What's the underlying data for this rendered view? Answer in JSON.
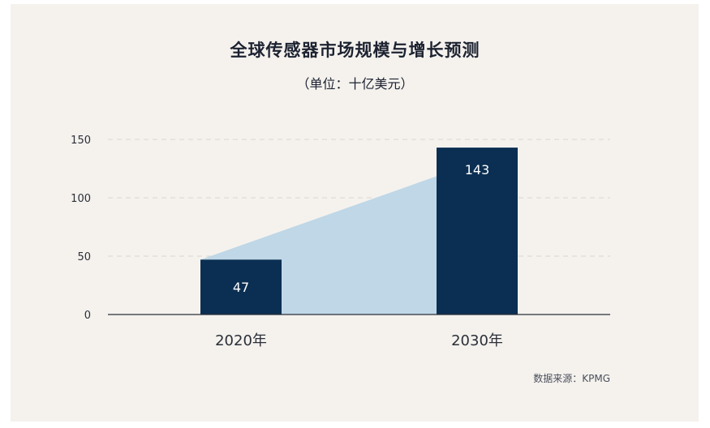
{
  "title": "全球传感器市场规模与增长预测",
  "subtitle": "（单位：十亿美元）",
  "source": "数据来源：KPMG",
  "colors": {
    "bar": "#0b2f52",
    "area": "#bfd7e6",
    "axis": "#2b2f38",
    "grid": "#d9d6d2",
    "background": "#f5f2ee"
  },
  "chart_data": {
    "type": "bar",
    "categories": [
      "2020年",
      "2030年"
    ],
    "values": [
      47,
      143
    ],
    "data_labels": [
      "47",
      "143"
    ],
    "yticks": [
      "0",
      "50",
      "100",
      "150"
    ],
    "ylim": [
      0,
      150
    ],
    "grid": true,
    "growth_area": true
  }
}
